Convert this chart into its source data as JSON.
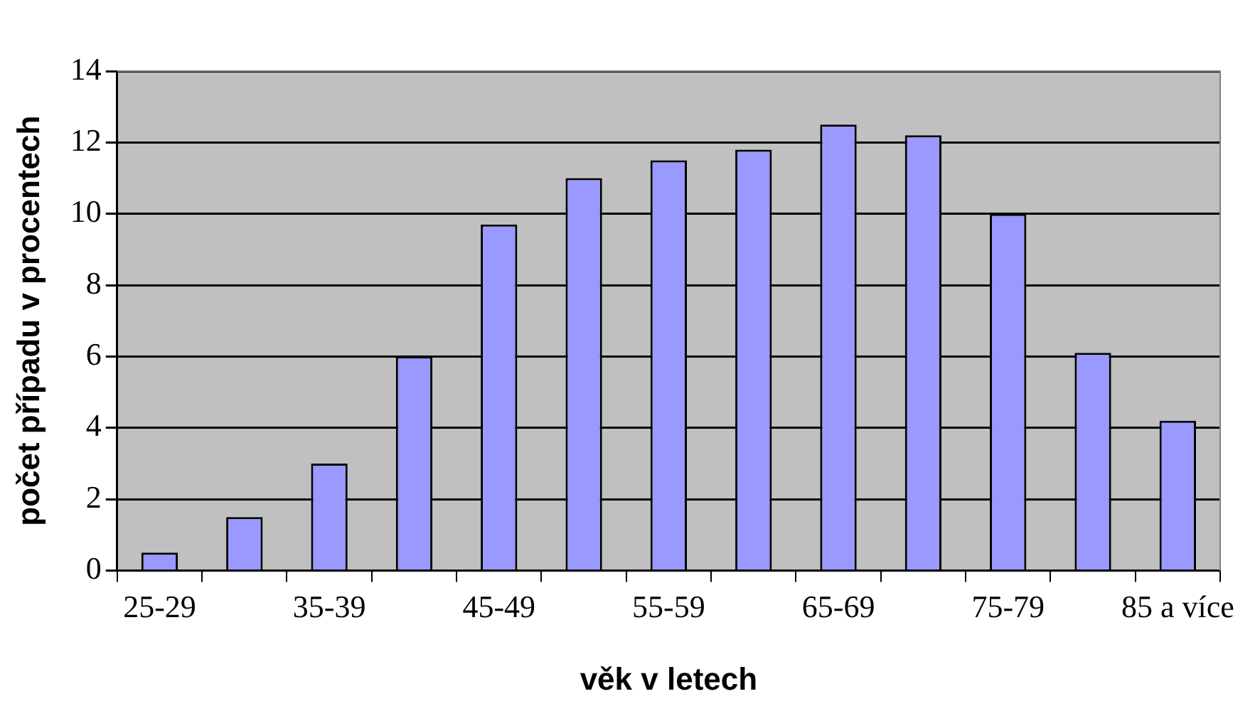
{
  "chart_data": {
    "type": "bar",
    "xlabel": "věk v letech",
    "ylabel": "počet případu v procentech",
    "categories": [
      "25-29",
      null,
      "35-39",
      null,
      "45-49",
      null,
      "55-59",
      null,
      "65-69",
      null,
      "75-79",
      null,
      "85 a více"
    ],
    "values": [
      0.5,
      1.5,
      3,
      6,
      9.7,
      11,
      11.5,
      11.8,
      12.5,
      12.2,
      10,
      6.1,
      4.2
    ],
    "color": "#9999ff",
    "ylim": [
      0,
      14
    ],
    "yticks": [
      0,
      2,
      4,
      6,
      8,
      10,
      12,
      14
    ],
    "grid": "y",
    "legend": false
  }
}
